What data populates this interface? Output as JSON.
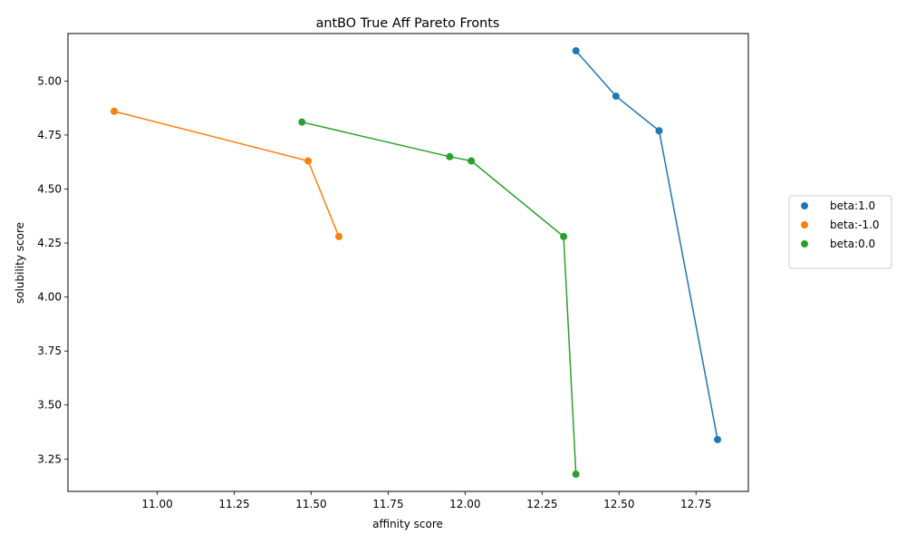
{
  "chart_data": {
    "type": "scatter",
    "title": "antBO True Aff Pareto Fronts",
    "xlabel": "affinity score",
    "ylabel": "solubility score",
    "xlim": [
      10.71,
      12.92
    ],
    "ylim": [
      3.1,
      5.22
    ],
    "xticks": [
      "11.00",
      "11.25",
      "11.50",
      "11.75",
      "12.00",
      "12.25",
      "12.50",
      "12.75"
    ],
    "yticks": [
      "3.25",
      "3.50",
      "3.75",
      "4.00",
      "4.25",
      "4.50",
      "4.75",
      "5.00"
    ],
    "xtick_values": [
      11.0,
      11.25,
      11.5,
      11.75,
      12.0,
      12.25,
      12.5,
      12.75
    ],
    "ytick_values": [
      3.25,
      3.5,
      3.75,
      4.0,
      4.25,
      4.5,
      4.75,
      5.0
    ],
    "grid": false,
    "legend_position": "right, outside plot",
    "series": [
      {
        "name": "beta:1.0",
        "color": "#1f77b4",
        "points": [
          [
            12.36,
            5.14
          ],
          [
            12.49,
            4.93
          ],
          [
            12.63,
            4.77
          ],
          [
            12.82,
            3.34
          ]
        ]
      },
      {
        "name": "beta:-1.0",
        "color": "#ff7f0e",
        "points": [
          [
            10.86,
            4.86
          ],
          [
            11.49,
            4.63
          ],
          [
            11.59,
            4.28
          ]
        ]
      },
      {
        "name": "beta:0.0",
        "color": "#2ca02c",
        "points": [
          [
            11.47,
            4.81
          ],
          [
            11.95,
            4.65
          ],
          [
            12.02,
            4.63
          ],
          [
            12.32,
            4.28
          ],
          [
            12.36,
            3.18
          ]
        ]
      }
    ]
  }
}
